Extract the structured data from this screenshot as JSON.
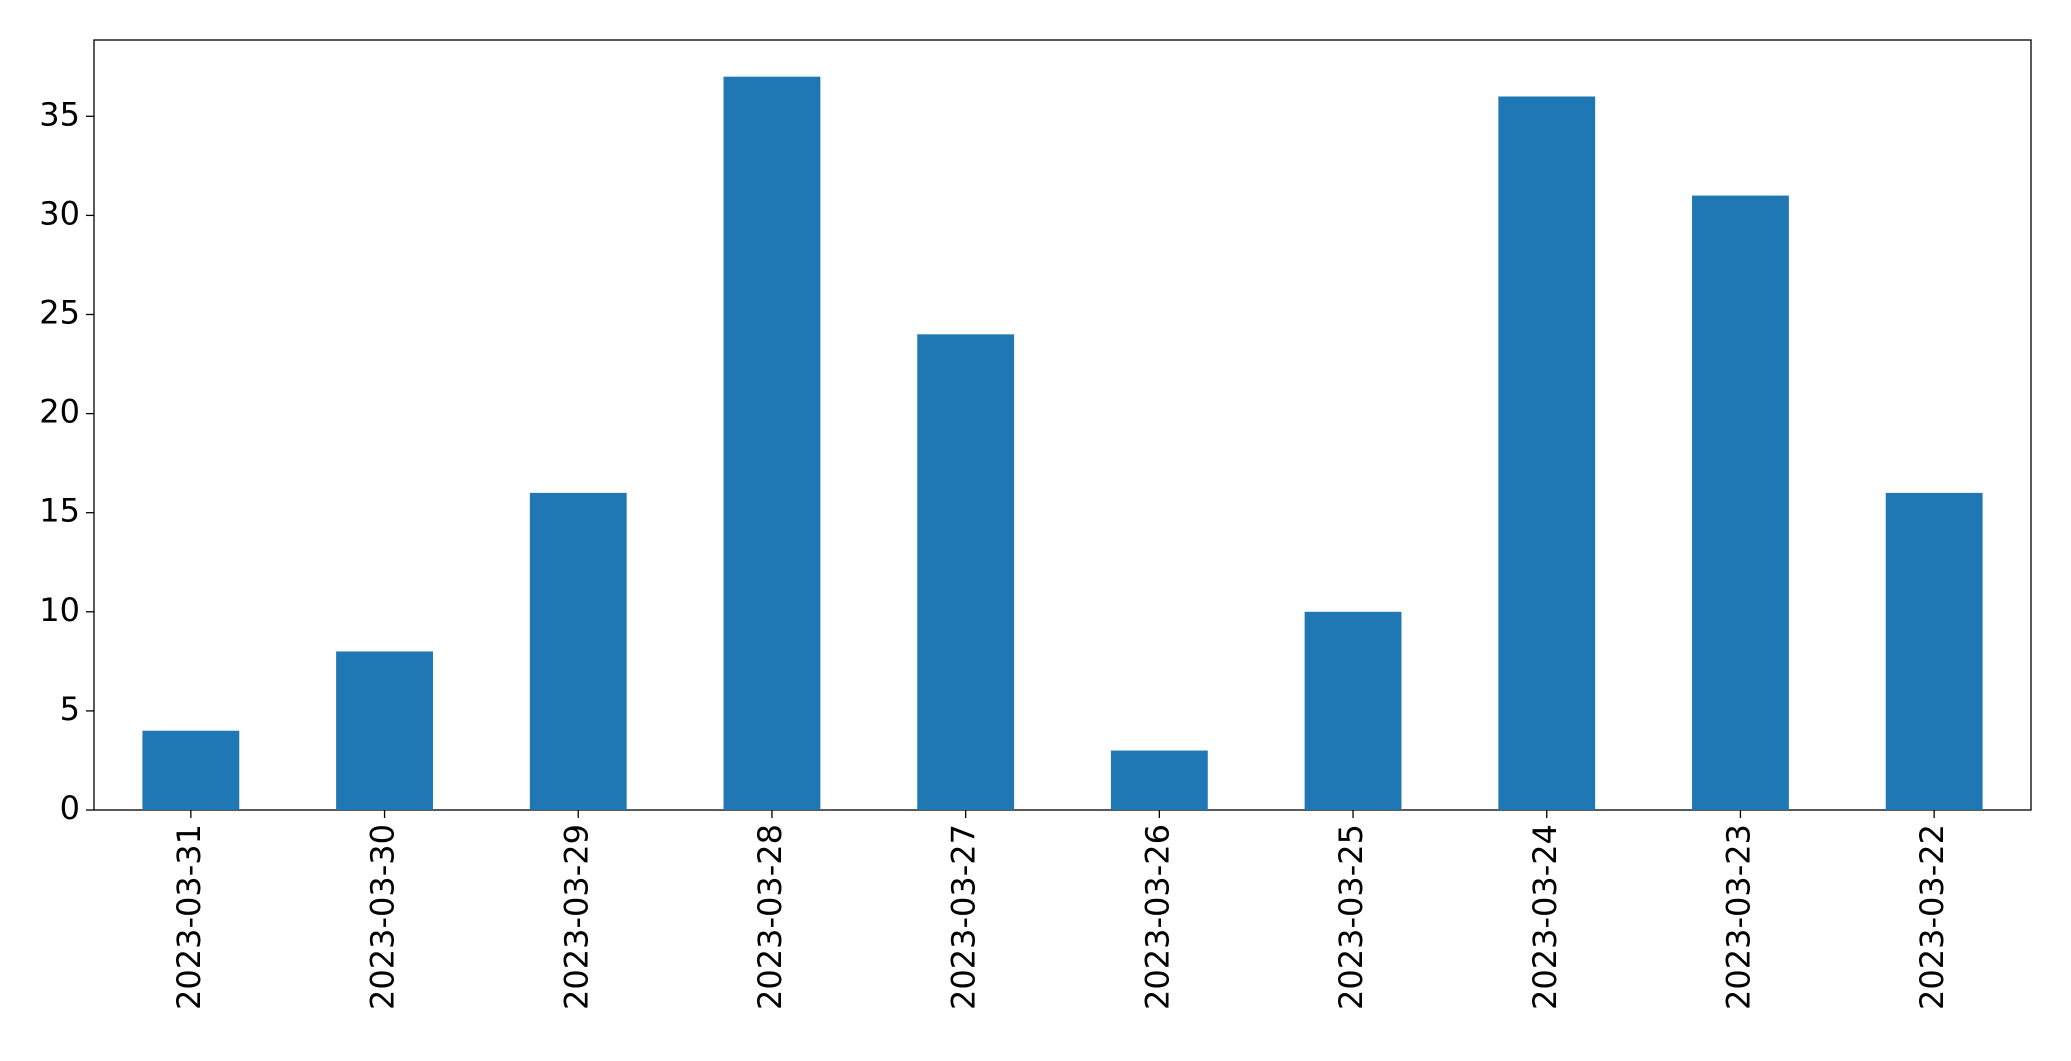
{
  "chart_data": {
    "type": "bar",
    "categories": [
      "2023-03-31",
      "2023-03-30",
      "2023-03-29",
      "2023-03-28",
      "2023-03-27",
      "2023-03-26",
      "2023-03-25",
      "2023-03-24",
      "2023-03-23",
      "2023-03-22"
    ],
    "values": [
      4,
      8,
      16,
      37,
      24,
      3,
      10,
      36,
      31,
      16
    ],
    "color": "#1f77b4",
    "ylim": [
      0,
      38.85
    ],
    "yticks": [
      0,
      5,
      10,
      15,
      20,
      25,
      30,
      35
    ],
    "grid": false
  }
}
